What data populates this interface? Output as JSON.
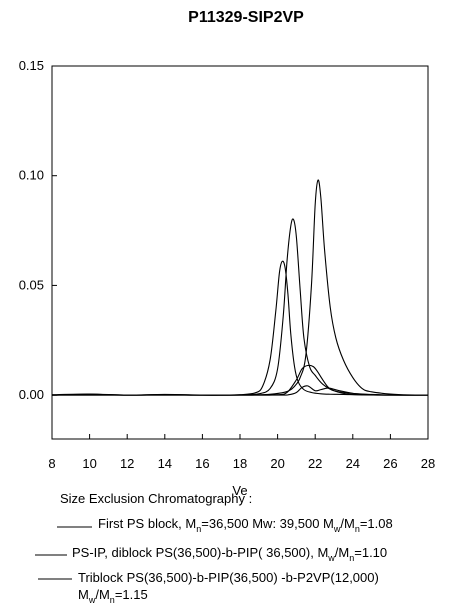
{
  "chart_data": {
    "type": "line",
    "title": "P11329-SIP2VP",
    "xlabel": "Ve",
    "ylabel": "",
    "xlim": [
      8,
      28
    ],
    "ylim": [
      -0.02,
      0.15
    ],
    "x_ticks": [
      "8",
      "10",
      "12",
      "14",
      "16",
      "18",
      "20",
      "22",
      "24",
      "26",
      "28"
    ],
    "y_ticks": [
      "0.00",
      "0.05",
      "0.10",
      "0.15"
    ],
    "y_tick_values": [
      0.0,
      0.05,
      0.1,
      0.15
    ],
    "grid": false,
    "legend": {
      "heading": "Size Exclusion Chromatography :",
      "entries": [
        {
          "text": "First PS block, M",
          "sub1": "n",
          "text2": "=36,500 Mw: 39,500   M",
          "sub2": "w",
          "text3": "/M",
          "sub3": "n",
          "text4": "=1.08"
        },
        {
          "text": "PS-IP, diblock PS(36,500)-b-PIP( 36,500),  M",
          "sub1": "w",
          "text2": "/M",
          "sub2": "n",
          "text3": "=1.10"
        },
        {
          "text": "Triblock PS(36,500)-b-PIP(36,500) -b-P2VP(12,000)",
          "line2a": "M",
          "sub1": "w",
          "line2b": "/M",
          "sub2": "n",
          "line2c": "=1.15"
        }
      ]
    },
    "series": [
      {
        "x": [
          8,
          10,
          12,
          14,
          16,
          17,
          18,
          18.8,
          19.2,
          19.6,
          19.9,
          20.1,
          20.25,
          20.4,
          20.55,
          20.7,
          20.9,
          21.1,
          21.4,
          21.8,
          22.3,
          22.8,
          23.5,
          24.5,
          26,
          28
        ],
        "y": [
          0.0002,
          0.0005,
          0.0,
          0.0003,
          0.0,
          0.0,
          0.0002,
          0.001,
          0.004,
          0.016,
          0.038,
          0.056,
          0.061,
          0.058,
          0.046,
          0.028,
          0.013,
          0.006,
          0.0025,
          0.0012,
          0.0006,
          0.0004,
          0.0003,
          0.0001,
          0.0,
          0.0
        ]
      },
      {
        "x": [
          8,
          10,
          12,
          14,
          16,
          18,
          19,
          19.6,
          20,
          20.3,
          20.5,
          20.7,
          20.85,
          21.0,
          21.2,
          21.4,
          21.7,
          22.0,
          22.4,
          23,
          24,
          25,
          26,
          28
        ],
        "y": [
          0.0,
          0.0004,
          0.0,
          0.0002,
          0.0,
          0.0001,
          0.0006,
          0.003,
          0.012,
          0.036,
          0.061,
          0.077,
          0.08,
          0.072,
          0.048,
          0.026,
          0.013,
          0.009,
          0.005,
          0.002,
          0.0008,
          0.0003,
          0.0001,
          0.0
        ]
      },
      {
        "x": [
          8,
          10,
          12,
          14,
          16,
          18,
          19.5,
          20.2,
          20.6,
          20.9,
          21.2,
          21.5,
          21.8,
          22.0,
          22.15,
          22.3,
          22.5,
          22.8,
          23.1,
          23.5,
          24,
          24.5,
          25,
          26,
          27,
          28
        ],
        "y": [
          0.0,
          0.0003,
          0.0,
          0.0002,
          0.0,
          0.0,
          0.0003,
          0.001,
          0.002,
          0.004,
          0.008,
          0.018,
          0.05,
          0.087,
          0.098,
          0.09,
          0.066,
          0.04,
          0.026,
          0.016,
          0.008,
          0.003,
          0.0015,
          0.0005,
          0.0001,
          0.0
        ]
      },
      {
        "x": [
          8,
          12,
          16,
          19,
          20,
          20.5,
          21,
          21.3,
          21.6,
          21.9,
          22.1,
          22.4,
          22.7,
          23,
          23.5,
          24,
          25,
          26,
          28
        ],
        "y": [
          0.0,
          0.0,
          0.0,
          0.0,
          0.0002,
          0.0012,
          0.007,
          0.012,
          0.0135,
          0.013,
          0.011,
          0.007,
          0.0035,
          0.002,
          0.0008,
          0.0003,
          0.0001,
          0.0,
          0.0
        ]
      },
      {
        "x": [
          8,
          16,
          20,
          20.6,
          21.0,
          21.3,
          21.6,
          22.0,
          22.3,
          22.7,
          23.2,
          24,
          25,
          26,
          28
        ],
        "y": [
          0.0,
          0.0,
          0.0,
          0.0002,
          0.0012,
          0.0035,
          0.0042,
          0.002,
          0.0025,
          0.0032,
          0.0022,
          0.0008,
          0.0002,
          0.0,
          0.0
        ]
      }
    ]
  }
}
